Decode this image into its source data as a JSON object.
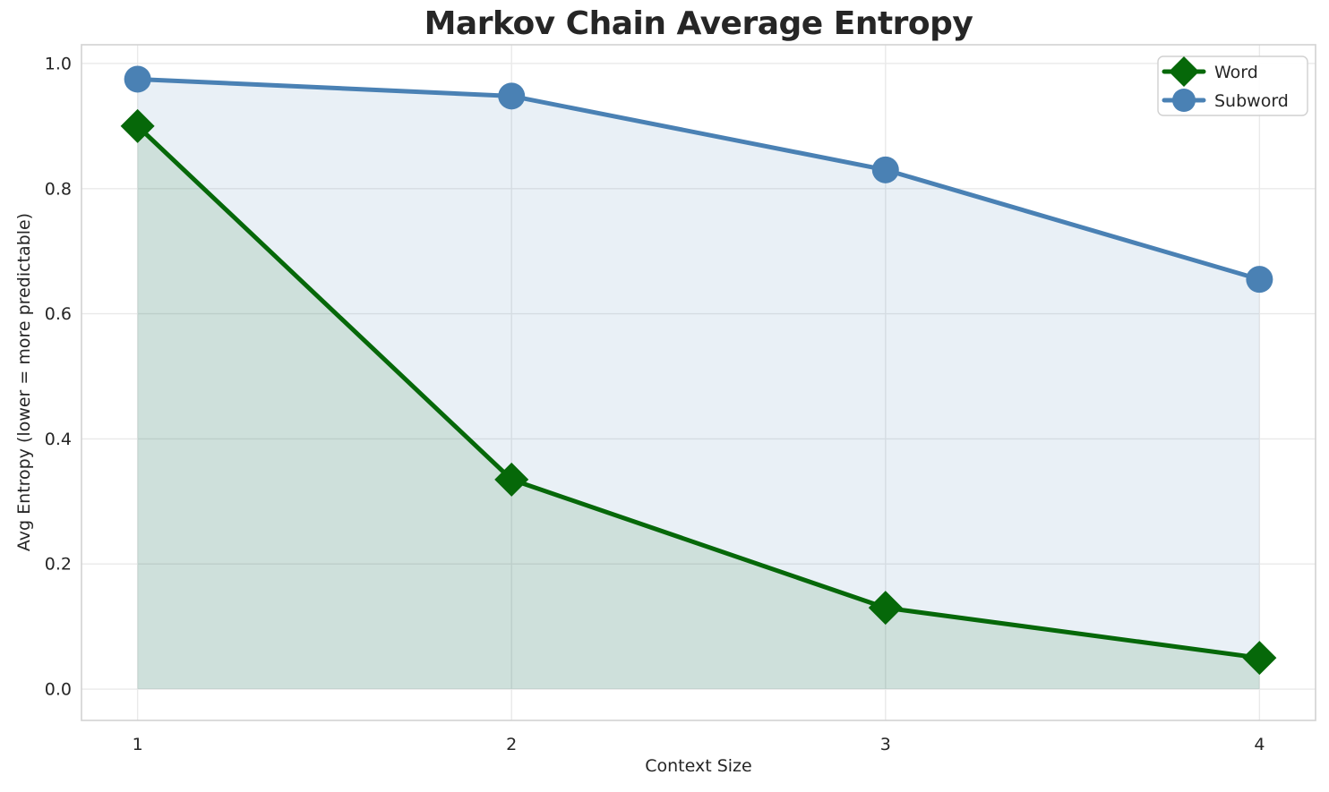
{
  "figure": {
    "background": "#ffffff",
    "text_color": "#262626",
    "grid_color": "#e9e9e9",
    "spine_color": "#d2d2d2",
    "legend_border_color": "#d0d0d0",
    "legend_background": "#ffffff"
  },
  "chart_data": {
    "type": "line",
    "title": "Markov Chain Average Entropy",
    "xlabel": "Context Size",
    "ylabel": "Avg Entropy (lower = more predictable)",
    "x": [
      1,
      2,
      3,
      4
    ],
    "series": [
      {
        "name": "Word",
        "values": [
          0.9,
          0.335,
          0.13,
          0.05
        ],
        "color": "#066809",
        "marker": "diamond",
        "fill_to_zero": true,
        "fill_opacity": 0.12
      },
      {
        "name": "Subword",
        "values": [
          0.975,
          0.948,
          0.83,
          0.655
        ],
        "color": "#4a81b4",
        "marker": "circle",
        "fill_to_zero": true,
        "fill_opacity": 0.12
      }
    ],
    "xticks": [
      "1",
      "2",
      "3",
      "4"
    ],
    "yticks": [
      "0.0",
      "0.2",
      "0.4",
      "0.6",
      "0.8",
      "1.0"
    ],
    "xlim": [
      0.85,
      4.15
    ],
    "ylim": [
      -0.05,
      1.03
    ],
    "grid": true,
    "legend_position": "upper right",
    "legend_labels": [
      "Word",
      "Subword"
    ]
  }
}
